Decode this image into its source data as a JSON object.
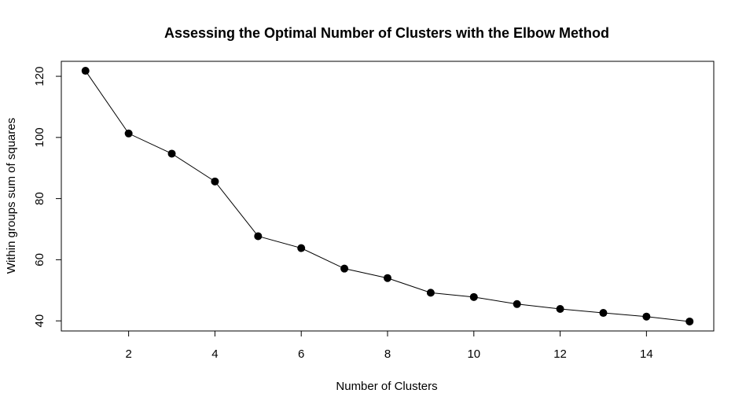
{
  "chart_data": {
    "type": "line",
    "title": "Assessing the Optimal Number of Clusters with the Elbow Method",
    "xlabel": "Number of Clusters",
    "ylabel": "Within groups sum of squares",
    "x": [
      1,
      2,
      3,
      4,
      5,
      6,
      7,
      8,
      9,
      10,
      11,
      12,
      13,
      14,
      15
    ],
    "series": [
      {
        "values": [
          121.8,
          101.3,
          94.7,
          85.6,
          67.7,
          63.8,
          57.1,
          54.0,
          49.2,
          47.8,
          45.5,
          43.9,
          42.6,
          41.4,
          39.8
        ]
      }
    ],
    "xlim": [
      0.44,
      15.56
    ],
    "ylim": [
      36.7,
      124.9
    ],
    "xticks": [
      2,
      4,
      6,
      8,
      10,
      12,
      14
    ],
    "yticks": [
      40,
      60,
      80,
      100,
      120
    ],
    "marker": "filled-circle",
    "line_color": "#000000",
    "grid": false,
    "legend": "none"
  }
}
